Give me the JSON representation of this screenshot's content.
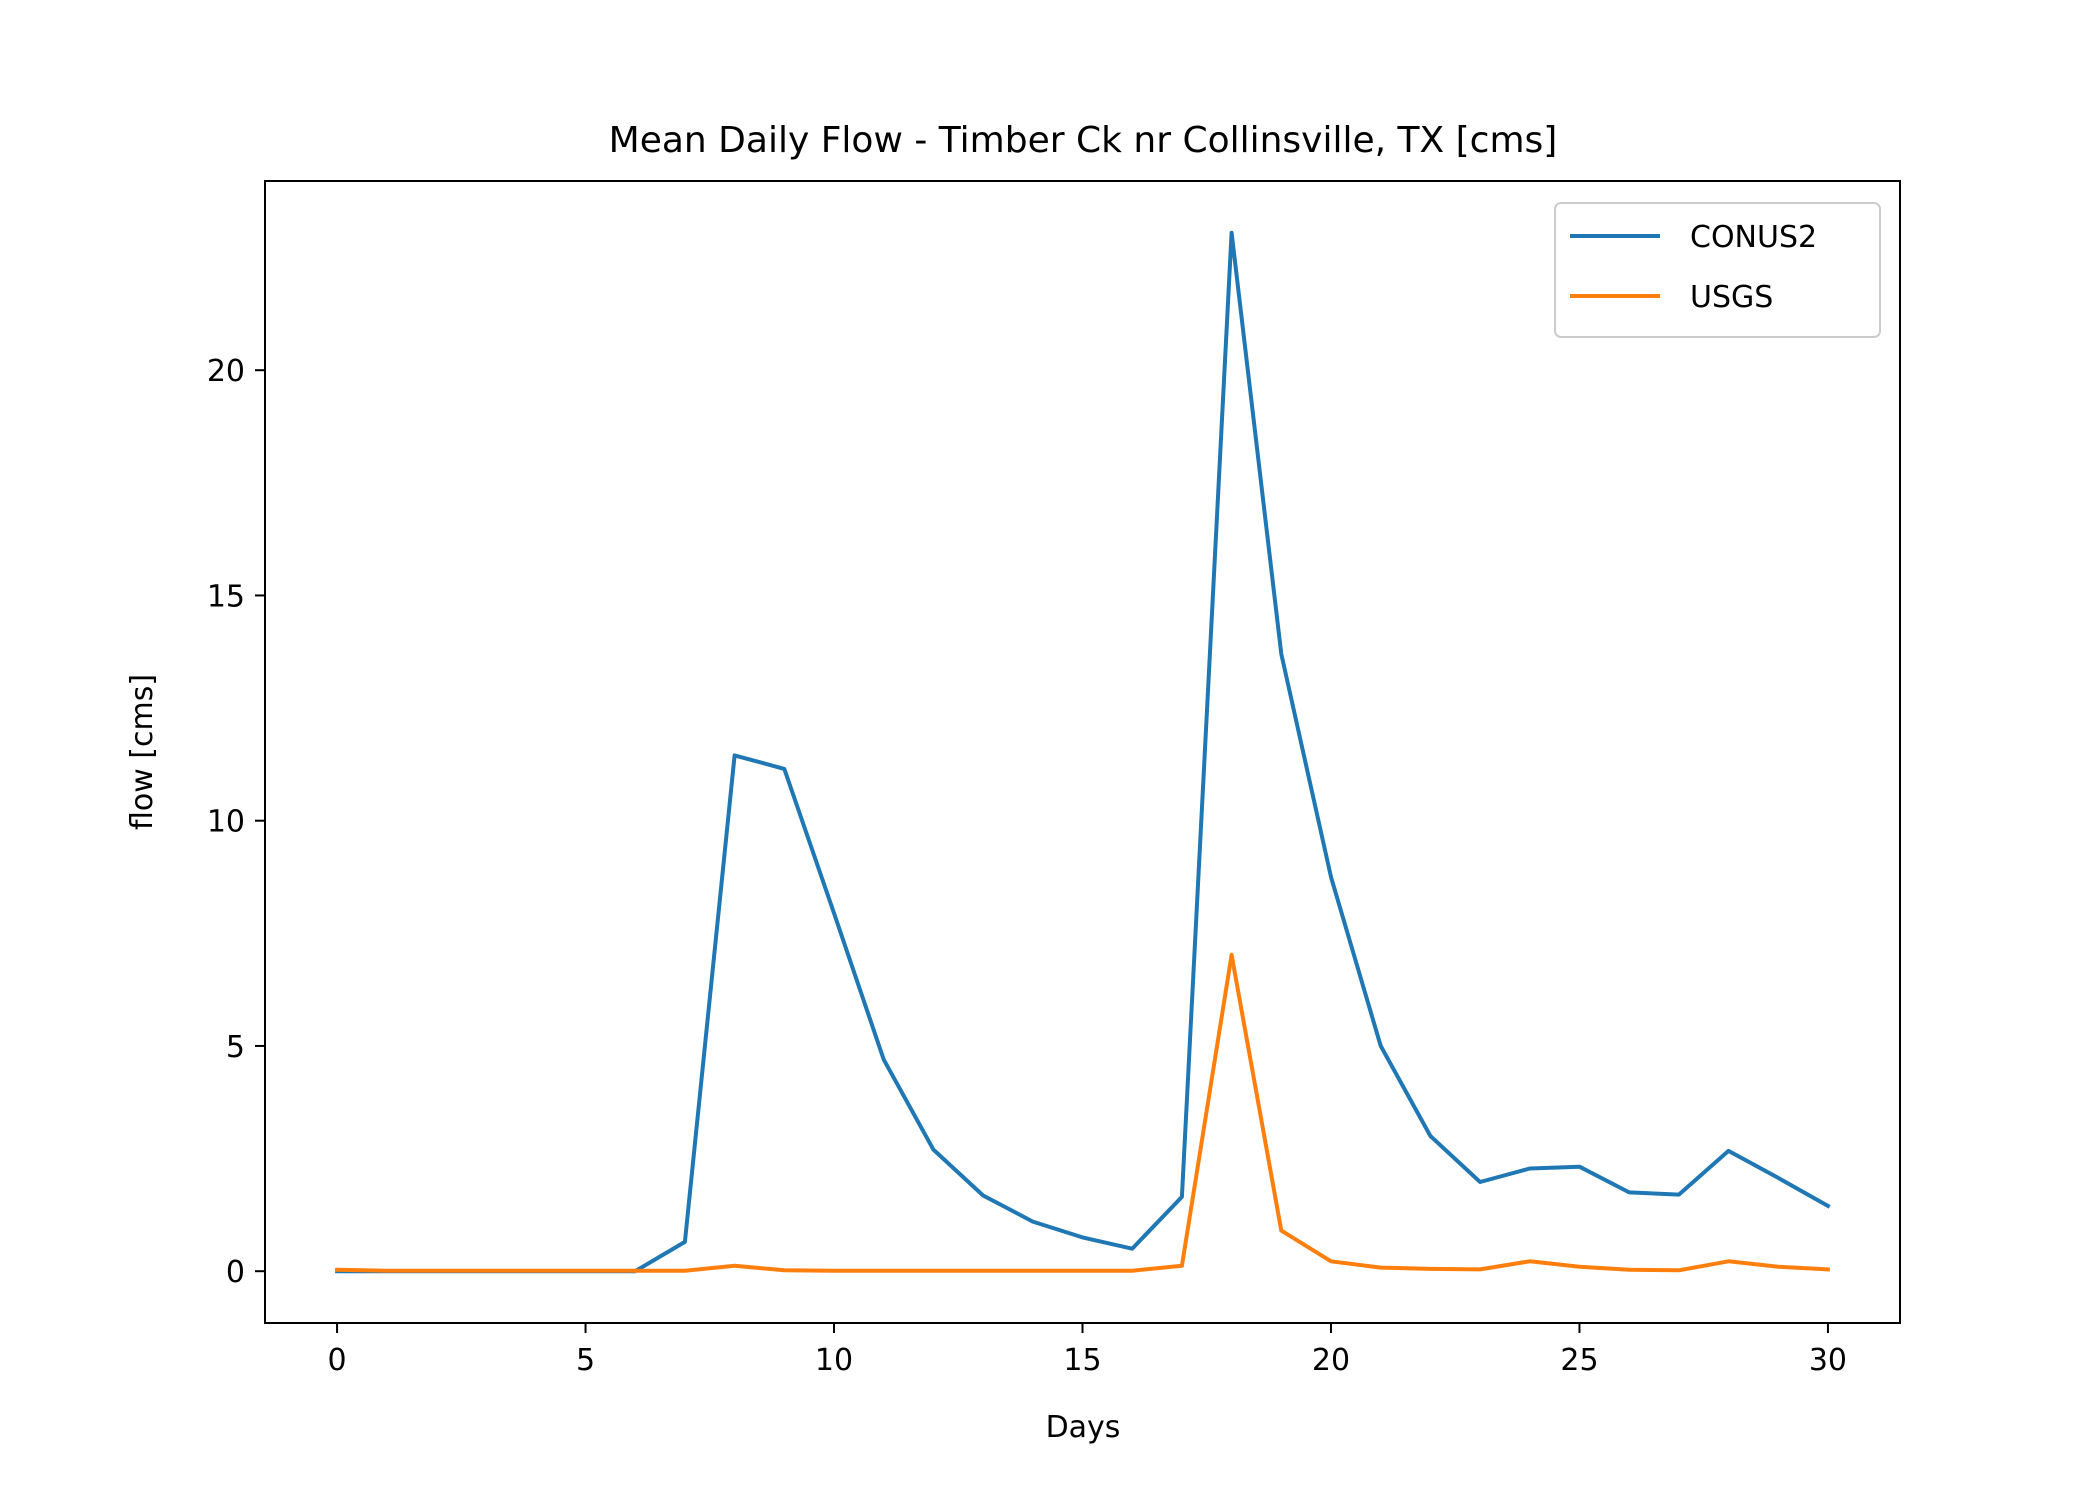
{
  "chart_data": {
    "type": "line",
    "title": "Mean Daily Flow - Timber Ck nr Collinsville, TX [cms]",
    "xlabel": "Days",
    "ylabel": "flow [cms]",
    "xlim": [
      -1.45,
      31.45
    ],
    "ylim": [
      -1.15,
      24.2
    ],
    "xticks": [
      0,
      5,
      10,
      15,
      20,
      25,
      30
    ],
    "yticks": [
      0,
      5,
      10,
      15,
      20
    ],
    "grid": false,
    "legend_position": "upper-right",
    "x": [
      0,
      1,
      2,
      3,
      4,
      5,
      6,
      7,
      8,
      9,
      10,
      11,
      12,
      13,
      14,
      15,
      16,
      17,
      18,
      19,
      20,
      21,
      22,
      23,
      24,
      25,
      26,
      27,
      28,
      29,
      30
    ],
    "series": [
      {
        "name": "CONUS2",
        "color": "#1f77b4",
        "values": [
          0,
          0,
          0,
          0,
          0,
          0,
          0,
          0.65,
          11.45,
          11.15,
          7.95,
          4.7,
          2.7,
          1.68,
          1.1,
          0.75,
          0.5,
          1.65,
          23.05,
          13.7,
          8.75,
          5.0,
          3.0,
          1.98,
          2.28,
          2.32,
          1.75,
          1.7,
          2.67,
          2.07,
          1.45
        ]
      },
      {
        "name": "USGS",
        "color": "#ff7f0e",
        "values": [
          0.03,
          0.01,
          0.01,
          0.01,
          0.01,
          0.01,
          0.01,
          0.01,
          0.12,
          0.02,
          0.01,
          0.01,
          0.01,
          0.01,
          0.01,
          0.01,
          0.01,
          0.12,
          7.02,
          0.9,
          0.22,
          0.08,
          0.05,
          0.04,
          0.22,
          0.1,
          0.03,
          0.02,
          0.22,
          0.1,
          0.04
        ]
      }
    ]
  }
}
